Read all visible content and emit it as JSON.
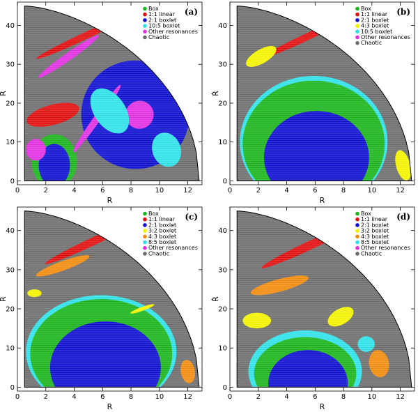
{
  "chart_data": [
    {
      "type": "scatter",
      "panel_label": "(a)",
      "xlabel": "R",
      "ylabel": "Ṙ",
      "xlim": [
        0,
        13
      ],
      "ylim": [
        -1,
        46
      ],
      "xticks": [
        0,
        2,
        4,
        6,
        8,
        10,
        12
      ],
      "yticks": [
        0,
        10,
        20,
        30,
        40
      ],
      "legend": [
        {
          "name": "Box",
          "color": "#1db51d"
        },
        {
          "name": "1:1 linear",
          "color": "#e01010"
        },
        {
          "name": "2:1 boxlet",
          "color": "#1010d0"
        },
        {
          "name": "10:5 boxlet",
          "color": "#30e0e8"
        },
        {
          "name": "Other resonances",
          "color": "#e030e0"
        },
        {
          "name": "Chaotic",
          "color": "#6e6e6e"
        }
      ],
      "regions": [
        {
          "color": "#1010d0",
          "shape": "ellipse",
          "cx": 8.3,
          "cy": 17,
          "rx": 3.8,
          "ry": 14,
          "rot": -30
        },
        {
          "color": "#1010d0",
          "shape": "ellipse",
          "cx": 2.6,
          "cy": 4,
          "rx": 1.1,
          "ry": 5.5,
          "rot": 0
        },
        {
          "color": "#1db51d",
          "shape": "ellipse",
          "cx": 2.6,
          "cy": 5,
          "rx": 1.6,
          "ry": 7,
          "rot": 0,
          "under": true
        },
        {
          "color": "#e01010",
          "shape": "ellipse",
          "cx": 2.5,
          "cy": 17,
          "rx": 1.9,
          "ry": 2.6,
          "rot": -15
        },
        {
          "color": "#e01010",
          "shape": "ellipse",
          "cx": 4.6,
          "cy": 37,
          "rx": 3.6,
          "ry": 0.9,
          "rot": -25
        },
        {
          "color": "#e030e0",
          "shape": "ellipse",
          "cx": 3.6,
          "cy": 32,
          "rx": 2.6,
          "ry": 1.0,
          "rot": -35
        },
        {
          "color": "#e030e0",
          "shape": "ellipse",
          "cx": 5.6,
          "cy": 16,
          "rx": 2.9,
          "ry": 0.9,
          "rot": -55
        },
        {
          "color": "#e030e0",
          "shape": "ellipse",
          "cx": 8.6,
          "cy": 17,
          "rx": 1.0,
          "ry": 3.6,
          "rot": -25
        },
        {
          "color": "#e030e0",
          "shape": "ellipse",
          "cx": 1.3,
          "cy": 8,
          "rx": 0.7,
          "ry": 2.8,
          "rot": 0
        },
        {
          "color": "#30e0e8",
          "shape": "ellipse",
          "cx": 10.5,
          "cy": 8,
          "rx": 1.0,
          "ry": 4.5,
          "rot": -20
        },
        {
          "color": "#30e0e8",
          "shape": "ellipse",
          "cx": 6.5,
          "cy": 18,
          "rx": 1.1,
          "ry": 6.5,
          "rot": -35
        }
      ]
    },
    {
      "type": "scatter",
      "panel_label": "(b)",
      "xlabel": "R",
      "ylabel": "Ṙ",
      "xlim": [
        0,
        13
      ],
      "ylim": [
        -1,
        46
      ],
      "xticks": [
        0,
        2,
        4,
        6,
        8,
        10,
        12
      ],
      "yticks": [
        0,
        10,
        20,
        30,
        40
      ],
      "legend": [
        {
          "name": "Box",
          "color": "#1db51d"
        },
        {
          "name": "1:1 linear",
          "color": "#e01010"
        },
        {
          "name": "2:1 boxlet",
          "color": "#1010d0"
        },
        {
          "name": "4:3 boxlet",
          "color": "#f2f200"
        },
        {
          "name": "10:5 boxlet",
          "color": "#30e0e8"
        },
        {
          "name": "Other resonances",
          "color": "#e030e0"
        },
        {
          "name": "Chaotic",
          "color": "#6e6e6e"
        }
      ],
      "regions": [
        {
          "color": "#30e0e8",
          "shape": "ellipse",
          "cx": 5.9,
          "cy": 10,
          "rx": 5.2,
          "ry": 17,
          "rot": 0
        },
        {
          "color": "#1db51d",
          "shape": "ellipse",
          "cx": 5.9,
          "cy": 9.5,
          "rx": 5.0,
          "ry": 16.3,
          "rot": 0
        },
        {
          "color": "#1010d0",
          "shape": "ellipse",
          "cx": 6.1,
          "cy": 6,
          "rx": 3.7,
          "ry": 12,
          "rot": 0
        },
        {
          "color": "#e01010",
          "shape": "ellipse",
          "cx": 5.4,
          "cy": 37,
          "rx": 3.4,
          "ry": 0.9,
          "rot": -25
        },
        {
          "color": "#f2f200",
          "shape": "ellipse",
          "cx": 2.2,
          "cy": 32,
          "rx": 1.2,
          "ry": 1.8,
          "rot": -30
        },
        {
          "color": "#f2f200",
          "shape": "ellipse",
          "cx": 12.2,
          "cy": 4,
          "rx": 0.5,
          "ry": 4,
          "rot": -15
        }
      ]
    },
    {
      "type": "scatter",
      "panel_label": "(c)",
      "xlabel": "R",
      "ylabel": "Ṙ",
      "xlim": [
        0,
        13
      ],
      "ylim": [
        -1,
        46
      ],
      "xticks": [
        0,
        2,
        4,
        6,
        8,
        10,
        12
      ],
      "yticks": [
        0,
        10,
        20,
        30,
        40
      ],
      "legend": [
        {
          "name": "Box",
          "color": "#1db51d"
        },
        {
          "name": "1:1 linear",
          "color": "#e01010"
        },
        {
          "name": "2:1 boxlet",
          "color": "#1010d0"
        },
        {
          "name": "3:2 boxlet",
          "color": "#f2f200"
        },
        {
          "name": "4:3 boxlet",
          "color": "#f08c10"
        },
        {
          "name": "8:5 boxlet",
          "color": "#30e0e8"
        },
        {
          "name": "Other resonances",
          "color": "#e030e0"
        },
        {
          "name": "Chaotic",
          "color": "#6e6e6e"
        }
      ],
      "regions": [
        {
          "color": "#30e0e8",
          "shape": "ellipse",
          "cx": 5.9,
          "cy": 9,
          "rx": 5.3,
          "ry": 14.5,
          "rot": 0
        },
        {
          "color": "#1db51d",
          "shape": "ellipse",
          "cx": 5.9,
          "cy": 8.5,
          "rx": 5.0,
          "ry": 14,
          "rot": 0
        },
        {
          "color": "#1010d0",
          "shape": "ellipse",
          "cx": 6.2,
          "cy": 5,
          "rx": 3.9,
          "ry": 11.8,
          "rot": 0
        },
        {
          "color": "#e01010",
          "shape": "ellipse",
          "cx": 5.2,
          "cy": 37,
          "rx": 3.6,
          "ry": 1.0,
          "rot": -25
        },
        {
          "color": "#f08c10",
          "shape": "ellipse",
          "cx": 3.2,
          "cy": 31,
          "rx": 2.0,
          "ry": 1.2,
          "rot": -20
        },
        {
          "color": "#f08c10",
          "shape": "ellipse",
          "cx": 12.0,
          "cy": 4,
          "rx": 0.5,
          "ry": 3,
          "rot": -10
        },
        {
          "color": "#f2f200",
          "shape": "ellipse",
          "cx": 1.2,
          "cy": 24,
          "rx": 0.5,
          "ry": 1.0,
          "rot": 0
        },
        {
          "color": "#f2f200",
          "shape": "ellipse",
          "cx": 8.8,
          "cy": 20,
          "rx": 0.9,
          "ry": 0.5,
          "rot": -20
        }
      ]
    },
    {
      "type": "scatter",
      "panel_label": "(d)",
      "xlabel": "R",
      "ylabel": "Ṙ",
      "xlim": [
        0,
        13
      ],
      "ylim": [
        -1,
        46
      ],
      "xticks": [
        0,
        2,
        4,
        6,
        8,
        10,
        12
      ],
      "yticks": [
        0,
        10,
        20,
        30,
        40
      ],
      "legend": [
        {
          "name": "Box",
          "color": "#1db51d"
        },
        {
          "name": "1:1 linear",
          "color": "#e01010"
        },
        {
          "name": "2:1 boxlet",
          "color": "#1010d0"
        },
        {
          "name": "3:2 boxlet",
          "color": "#f2f200"
        },
        {
          "name": "4:3 boxlet",
          "color": "#f08c10"
        },
        {
          "name": "8:5 boxlet",
          "color": "#30e0e8"
        },
        {
          "name": "Other resonances",
          "color": "#e030e0"
        },
        {
          "name": "Chaotic",
          "color": "#6e6e6e"
        }
      ],
      "regions": [
        {
          "color": "#30e0e8",
          "shape": "ellipse",
          "cx": 5.3,
          "cy": 4,
          "rx": 4.0,
          "ry": 10.5,
          "rot": 0
        },
        {
          "color": "#1db51d",
          "shape": "ellipse",
          "cx": 5.3,
          "cy": 3.5,
          "rx": 3.6,
          "ry": 9.3,
          "rot": 0
        },
        {
          "color": "#1010d0",
          "shape": "ellipse",
          "cx": 5.5,
          "cy": 1,
          "rx": 2.8,
          "ry": 8.5,
          "rot": 0
        },
        {
          "color": "#e01010",
          "shape": "ellipse",
          "cx": 5.5,
          "cy": 36,
          "rx": 3.6,
          "ry": 1.1,
          "rot": -25
        },
        {
          "color": "#f08c10",
          "shape": "ellipse",
          "cx": 3.5,
          "cy": 26,
          "rx": 2.1,
          "ry": 1.6,
          "rot": -15
        },
        {
          "color": "#f08c10",
          "shape": "ellipse",
          "cx": 10.5,
          "cy": 6,
          "rx": 0.7,
          "ry": 3.5,
          "rot": -10
        },
        {
          "color": "#f2f200",
          "shape": "ellipse",
          "cx": 1.9,
          "cy": 17,
          "rx": 1.0,
          "ry": 2.0,
          "rot": 0
        },
        {
          "color": "#f2f200",
          "shape": "ellipse",
          "cx": 7.8,
          "cy": 18,
          "rx": 1.0,
          "ry": 2.0,
          "rot": -30
        },
        {
          "color": "#30e0e8",
          "shape": "ellipse",
          "cx": 9.6,
          "cy": 11,
          "rx": 0.6,
          "ry": 2.0,
          "rot": 0
        }
      ]
    }
  ]
}
